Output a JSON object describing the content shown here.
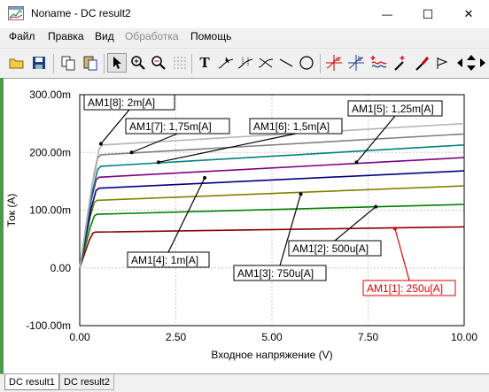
{
  "window": {
    "title": "Noname - DC result2",
    "minimize_glyph": "—",
    "maximize_glyph": "☐",
    "close_glyph": "✕"
  },
  "menu": {
    "file": "Файл",
    "edit": "Правка",
    "view": "Вид",
    "process": "Обработка",
    "help": "Помощь"
  },
  "toolbar": {
    "text_tool_label": "T",
    "icons": [
      "open-folder-icon",
      "save-disk-icon",
      "copy-icon",
      "paste-icon",
      "pointer-icon",
      "zoom-in-icon",
      "zoom-out-icon",
      "zoom-100-icon",
      "dotted-grid-icon",
      "text-icon",
      "curve-cursor-icon",
      "curve-cursor-2-icon",
      "tangent-icon",
      "line-tool-icon",
      "ellipse-tool-icon",
      "cursor-a-icon",
      "cursor-b-icon",
      "add-curve-icon",
      "marker-icon",
      "probe-icon",
      "flag-icon",
      "arrow-left-icon",
      "arrow-updown-icon",
      "arrow-right-icon"
    ]
  },
  "tabs": [
    "DC result1",
    "DC result2"
  ],
  "colors": {
    "am1_1": "#8b0000",
    "am1_2": "#008000",
    "am1_3": "#808000",
    "am1_4": "#000080",
    "am1_5": "#800080",
    "am1_6": "#008080",
    "am1_7": "#808080",
    "am1_8": "#c0c0c0",
    "highlight_label": "#e00000"
  },
  "chart_data": {
    "type": "line",
    "xlabel": "Входное напряжение (V)",
    "ylabel": "Ток (A)",
    "xlim": [
      0,
      10
    ],
    "ylim": [
      -0.1,
      0.3
    ],
    "x_ticks": [
      "0.00",
      "2.50",
      "5.00",
      "7.50",
      "10.00"
    ],
    "y_ticks": [
      "-100.00m",
      "0.00",
      "100.00m",
      "200.00m",
      "300.00m"
    ],
    "grid": true,
    "series": [
      {
        "name": "AM1[1]: 250u[A]",
        "color": "#8b0000",
        "knee_x": 0.4,
        "y0": 0.062,
        "y10": 0.071
      },
      {
        "name": "AM1[2]: 500u[A]",
        "color": "#008000",
        "knee_x": 0.45,
        "y0": 0.093,
        "y10": 0.11
      },
      {
        "name": "AM1[3]: 750u[A]",
        "color": "#808000",
        "knee_x": 0.45,
        "y0": 0.117,
        "y10": 0.142
      },
      {
        "name": "AM1[4]: 1m[A]",
        "color": "#000080",
        "knee_x": 0.5,
        "y0": 0.138,
        "y10": 0.168
      },
      {
        "name": "AM1[5]: 1,25m[A]",
        "color": "#800080",
        "knee_x": 0.5,
        "y0": 0.157,
        "y10": 0.191
      },
      {
        "name": "AM1[6]: 1,5m[A]",
        "color": "#008080",
        "knee_x": 0.55,
        "y0": 0.176,
        "y10": 0.213
      },
      {
        "name": "AM1[7]: 1,75m[A]",
        "color": "#808080",
        "knee_x": 0.55,
        "y0": 0.196,
        "y10": 0.232
      },
      {
        "name": "AM1[8]: 2m[A]",
        "color": "#b4b4b4",
        "knee_x": 0.6,
        "y0": 0.213,
        "y10": 0.25
      }
    ],
    "annotations": [
      {
        "text": "AM1[8]: 2m[A]",
        "ax": 0.55,
        "ay": 0.215
      },
      {
        "text": "AM1[7]: 1,75m[A]",
        "ax": 1.35,
        "ay": 0.2
      },
      {
        "text": "AM1[6]: 1,5m[A]",
        "ax": 2.05,
        "ay": 0.183
      },
      {
        "text": "AM1[5]: 1,25m[A]",
        "ax": 7.2,
        "ay": 0.183
      },
      {
        "text": "AM1[4]: 1m[A]",
        "ax": 3.25,
        "ay": 0.156
      },
      {
        "text": "AM1[3]: 750u[A]",
        "ax": 5.75,
        "ay": 0.128
      },
      {
        "text": "AM1[2]: 500u[A]",
        "ax": 7.7,
        "ay": 0.106
      },
      {
        "text": "AM1[1]: 250u[A]",
        "ax": 8.2,
        "ay": 0.068
      }
    ]
  }
}
